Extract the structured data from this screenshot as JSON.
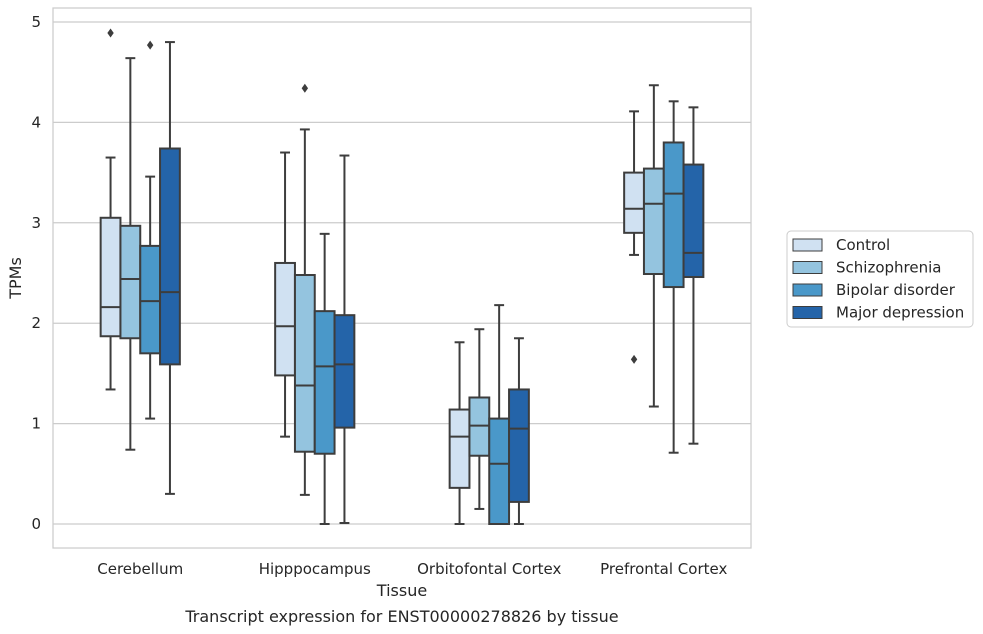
{
  "chart_data": {
    "type": "box",
    "title": "",
    "caption": "Transcript expression for ENST00000278826 by tissue",
    "xlabel": "Tissue",
    "ylabel": "TPMs",
    "ylim": [
      -0.22,
      5.15
    ],
    "yticks": [
      0,
      1,
      2,
      3,
      4,
      5
    ],
    "grid": "horizontal",
    "legend_position": "right",
    "categories": [
      "Cerebellum",
      "Hipppocampus",
      "Orbitofontal Cortex",
      "Prefrontal Cortex"
    ],
    "series": [
      {
        "name": "Control",
        "color": "#d0e1f2",
        "boxes": [
          {
            "min": 1.34,
            "q1": 1.87,
            "median": 2.16,
            "q3": 3.05,
            "max": 3.65,
            "outliers": [
              4.89
            ]
          },
          {
            "min": 0.87,
            "q1": 1.48,
            "median": 1.97,
            "q3": 2.6,
            "max": 3.7,
            "outliers": []
          },
          {
            "min": 0.0,
            "q1": 0.36,
            "median": 0.87,
            "q3": 1.14,
            "max": 1.81,
            "outliers": []
          },
          {
            "min": 2.68,
            "q1": 2.9,
            "median": 3.14,
            "q3": 3.5,
            "max": 4.11,
            "outliers": [
              1.64
            ]
          }
        ]
      },
      {
        "name": "Schizophrenia",
        "color": "#94c4df",
        "boxes": [
          {
            "min": 0.74,
            "q1": 1.85,
            "median": 2.44,
            "q3": 2.97,
            "max": 4.64,
            "outliers": []
          },
          {
            "min": 0.29,
            "q1": 0.72,
            "median": 1.38,
            "q3": 2.48,
            "max": 3.93,
            "outliers": [
              4.34
            ]
          },
          {
            "min": 0.15,
            "q1": 0.68,
            "median": 0.98,
            "q3": 1.26,
            "max": 1.94,
            "outliers": []
          },
          {
            "min": 1.17,
            "q1": 2.49,
            "median": 3.19,
            "q3": 3.54,
            "max": 4.37,
            "outliers": []
          }
        ]
      },
      {
        "name": "Bipolar disorder",
        "color": "#4a98c9",
        "boxes": [
          {
            "min": 1.05,
            "q1": 1.7,
            "median": 2.22,
            "q3": 2.77,
            "max": 3.46,
            "outliers": [
              4.77
            ]
          },
          {
            "min": 0.0,
            "q1": 0.7,
            "median": 1.57,
            "q3": 2.12,
            "max": 2.89,
            "outliers": []
          },
          {
            "min": 0.0,
            "q1": 0.0,
            "median": 0.6,
            "q3": 1.05,
            "max": 2.18,
            "outliers": []
          },
          {
            "min": 0.71,
            "q1": 2.36,
            "median": 3.29,
            "q3": 3.8,
            "max": 4.21,
            "outliers": []
          }
        ]
      },
      {
        "name": "Major depression",
        "color": "#2464a9",
        "boxes": [
          {
            "min": 0.3,
            "q1": 1.59,
            "median": 2.31,
            "q3": 3.74,
            "max": 4.8,
            "outliers": []
          },
          {
            "min": 0.01,
            "q1": 0.96,
            "median": 1.59,
            "q3": 2.08,
            "max": 3.67,
            "outliers": []
          },
          {
            "min": 0.0,
            "q1": 0.22,
            "median": 0.95,
            "q3": 1.34,
            "max": 1.85,
            "outliers": []
          },
          {
            "min": 0.8,
            "q1": 2.46,
            "median": 2.7,
            "q3": 3.58,
            "max": 4.15,
            "outliers": []
          }
        ]
      }
    ]
  }
}
